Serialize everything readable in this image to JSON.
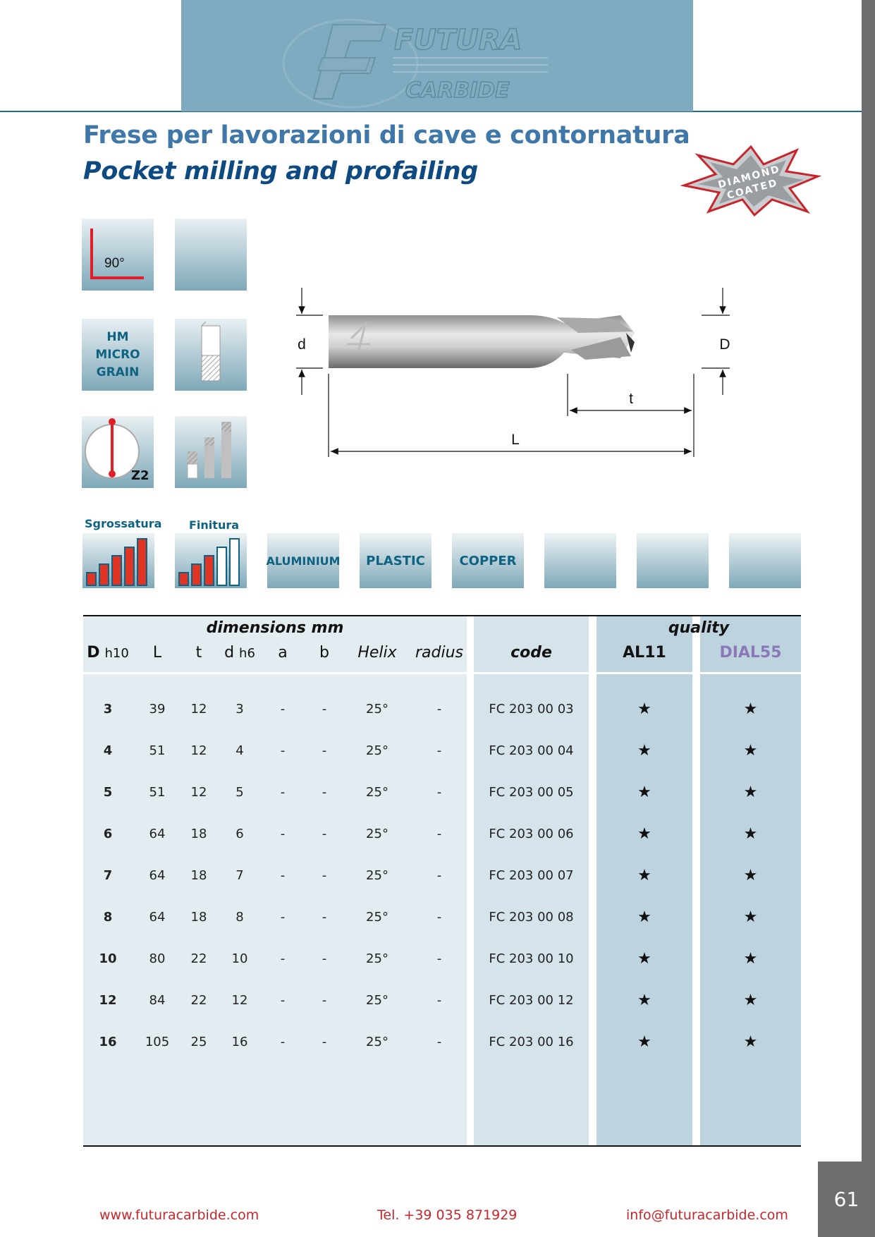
{
  "header": {
    "logo_top": "FUTURA",
    "logo_bottom": "CARBIDE"
  },
  "title": {
    "it": "Frese per lavorazioni di cave e contornatura",
    "en": "Pocket milling and profailing"
  },
  "badge": {
    "line1": "DIAMOND",
    "line2": "COATED"
  },
  "icons": {
    "angle_label": "90°",
    "material_label": "HM MICRO GRAIN",
    "flutes_label": "Z2"
  },
  "diagram": {
    "d": "d",
    "D": "D",
    "t": "t",
    "L": "L"
  },
  "applications": {
    "sgrossatura": "Sgrossatura",
    "finitura": "Finitura",
    "sgrossatura_level": 5,
    "finitura_level": 3,
    "materials": [
      "ALUMINIUM",
      "PLASTIC",
      "COPPER",
      "",
      "",
      ""
    ]
  },
  "table": {
    "group_dimensions": "dimensions mm",
    "group_quality": "quality",
    "headers": {
      "D": "D",
      "D_sub": "h10",
      "L": "L",
      "t": "t",
      "d": "d",
      "d_sub": "h6",
      "a": "a",
      "b": "b",
      "helix": "Helix",
      "radius": "radius",
      "code": "code",
      "q1": "AL11",
      "q2": "DIAL55"
    },
    "rows": [
      {
        "D": "3",
        "L": "39",
        "t": "12",
        "d": "3",
        "a": "-",
        "b": "-",
        "helix": "25°",
        "radius": "-",
        "code": "FC 203 00 03",
        "q1": "★",
        "q2": "★"
      },
      {
        "D": "4",
        "L": "51",
        "t": "12",
        "d": "4",
        "a": "-",
        "b": "-",
        "helix": "25°",
        "radius": "-",
        "code": "FC 203 00 04",
        "q1": "★",
        "q2": "★"
      },
      {
        "D": "5",
        "L": "51",
        "t": "12",
        "d": "5",
        "a": "-",
        "b": "-",
        "helix": "25°",
        "radius": "-",
        "code": "FC 203 00 05",
        "q1": "★",
        "q2": "★"
      },
      {
        "D": "6",
        "L": "64",
        "t": "18",
        "d": "6",
        "a": "-",
        "b": "-",
        "helix": "25°",
        "radius": "-",
        "code": "FC 203 00 06",
        "q1": "★",
        "q2": "★"
      },
      {
        "D": "7",
        "L": "64",
        "t": "18",
        "d": "7",
        "a": "-",
        "b": "-",
        "helix": "25°",
        "radius": "-",
        "code": "FC 203 00 07",
        "q1": "★",
        "q2": "★"
      },
      {
        "D": "8",
        "L": "64",
        "t": "18",
        "d": "8",
        "a": "-",
        "b": "-",
        "helix": "25°",
        "radius": "-",
        "code": "FC 203 00 08",
        "q1": "★",
        "q2": "★"
      },
      {
        "D": "10",
        "L": "80",
        "t": "22",
        "d": "10",
        "a": "-",
        "b": "-",
        "helix": "25°",
        "radius": "-",
        "code": "FC 203 00 10",
        "q1": "★",
        "q2": "★"
      },
      {
        "D": "12",
        "L": "84",
        "t": "22",
        "d": "12",
        "a": "-",
        "b": "-",
        "helix": "25°",
        "radius": "-",
        "code": "FC 203 00 12",
        "q1": "★",
        "q2": "★"
      },
      {
        "D": "16",
        "L": "105",
        "t": "25",
        "d": "16",
        "a": "-",
        "b": "-",
        "helix": "25°",
        "radius": "-",
        "code": "FC 203 00 16",
        "q1": "★",
        "q2": "★"
      }
    ]
  },
  "footer": {
    "web": "www.futuracarbide.com",
    "tel": "Tel. +39 035 871929",
    "email": "info@futuracarbide.com"
  },
  "page_number": "61",
  "colors": {
    "accent_blue": "#3f78a8",
    "dark_blue": "#0e4a82",
    "red": "#c7252b",
    "teal": "#0f6382",
    "dial_purple": "#8a78b8"
  }
}
